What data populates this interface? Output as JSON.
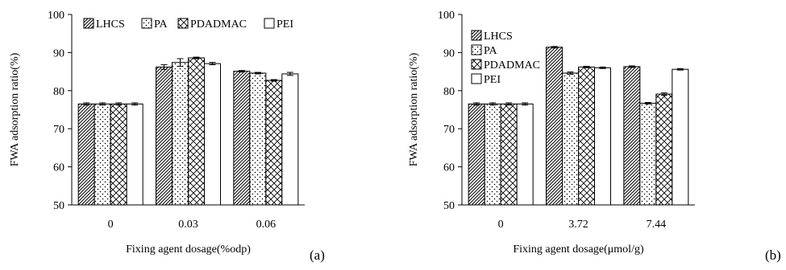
{
  "chart_data": [
    {
      "type": "bar",
      "panel_label": "(a)",
      "xlabel": "Fixing agent dosage(%odp)",
      "ylabel": "FWA adsorption ratio(%)",
      "ylim": [
        50,
        100
      ],
      "yticks": [
        50,
        60,
        70,
        80,
        90,
        100
      ],
      "categories": [
        "0",
        "0.03",
        "0.06"
      ],
      "series": [
        {
          "name": "LHCS",
          "values": [
            76.5,
            86.2,
            85.1
          ],
          "errors": [
            0.3,
            0.6,
            0.2
          ],
          "pattern": "diagonal"
        },
        {
          "name": "PA",
          "values": [
            76.5,
            87.4,
            84.6
          ],
          "errors": [
            0.3,
            1.0,
            0.2
          ],
          "pattern": "dots"
        },
        {
          "name": "PDADMAC",
          "values": [
            76.5,
            88.6,
            82.7
          ],
          "errors": [
            0.3,
            0.2,
            0.2
          ],
          "pattern": "crosshatch"
        },
        {
          "name": "PEI",
          "values": [
            76.5,
            87.1,
            84.4
          ],
          "errors": [
            0.3,
            0.3,
            0.4
          ],
          "pattern": "none"
        }
      ],
      "legend_position": "top, horizontal",
      "grid": false
    },
    {
      "type": "bar",
      "panel_label": "(b)",
      "xlabel": "Fixing agent dosage(μmol/g)",
      "ylabel": "FWA adsorption ratio(%)",
      "ylim": [
        50,
        100
      ],
      "yticks": [
        50,
        60,
        70,
        80,
        90,
        100
      ],
      "categories": [
        "0",
        "3.72",
        "7.44"
      ],
      "series": [
        {
          "name": "LHCS",
          "values": [
            76.5,
            91.4,
            86.3
          ],
          "errors": [
            0.3,
            0.2,
            0.2
          ],
          "pattern": "diagonal"
        },
        {
          "name": "PA",
          "values": [
            76.5,
            84.6,
            76.7
          ],
          "errors": [
            0.3,
            0.3,
            0.2
          ],
          "pattern": "dots"
        },
        {
          "name": "PDADMAC",
          "values": [
            76.5,
            86.2,
            79.1
          ],
          "errors": [
            0.3,
            0.2,
            0.3
          ],
          "pattern": "crosshatch"
        },
        {
          "name": "PEI",
          "values": [
            76.5,
            86.0,
            85.6
          ],
          "errors": [
            0.3,
            0.2,
            0.2
          ],
          "pattern": "none"
        }
      ],
      "legend_position": "top-left, vertical",
      "grid": false
    }
  ]
}
